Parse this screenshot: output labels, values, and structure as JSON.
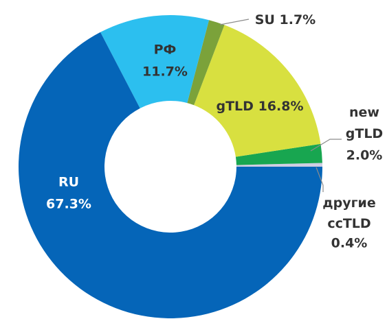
{
  "chart_data": {
    "type": "donut",
    "categories": [
      "RU",
      "РФ",
      "SU",
      "gTLD",
      "new gTLD",
      "другие ccTLD"
    ],
    "values": [
      67.3,
      11.7,
      1.7,
      16.8,
      2.0,
      0.4
    ],
    "value_labels": [
      "67.3%",
      "11.7%",
      "1.7%",
      "16.8%",
      "2.0%",
      "0.4%"
    ],
    "colors": [
      "#0565b8",
      "#2cbfef",
      "#7ba23a",
      "#d8e040",
      "#18a650",
      "#cfcde3"
    ]
  }
}
